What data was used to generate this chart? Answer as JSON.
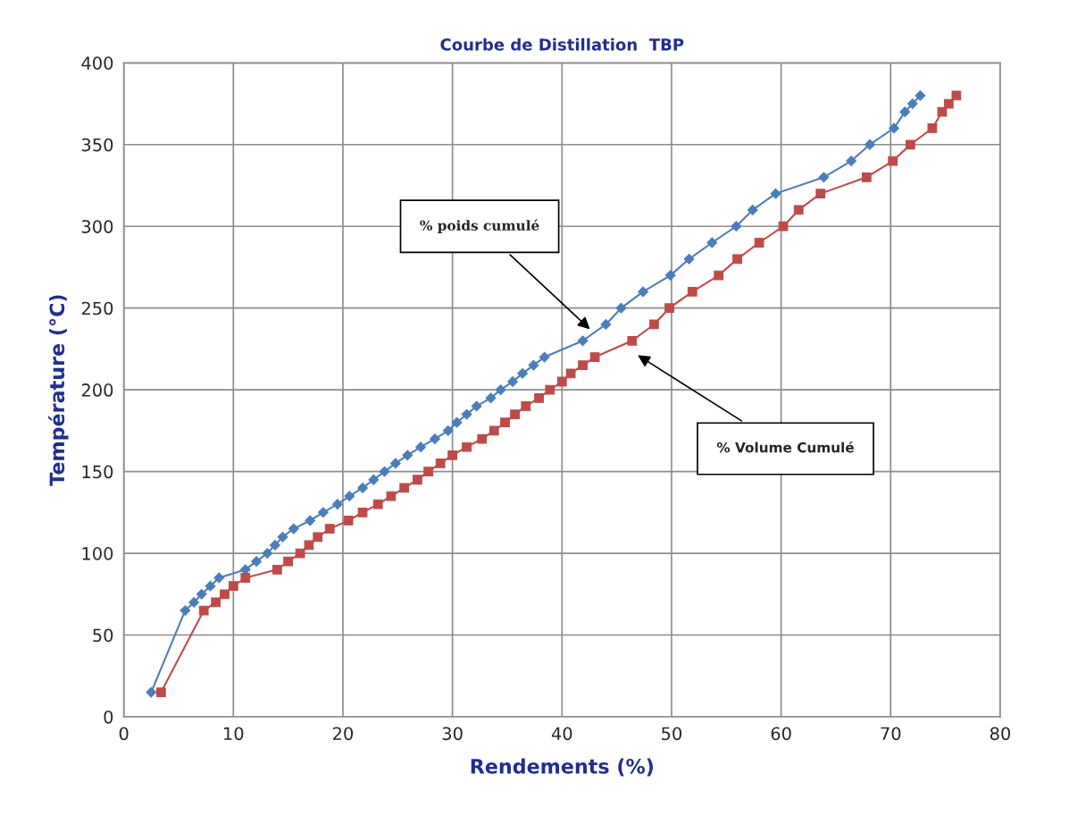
{
  "chart_data": {
    "type": "line",
    "title": "Courbe de Distillation  TBP",
    "xlabel": "Rendements (%)",
    "ylabel": "Température (°C)",
    "series": [
      {
        "color": "#4a7ebb",
        "marker": "diamond",
        "x": [
          2.5,
          5.6,
          6.4,
          7.1,
          7.9,
          8.7,
          11.1,
          12.1,
          13.1,
          13.8,
          14.5,
          15.5,
          17.0,
          18.2,
          19.5,
          20.6,
          21.8,
          22.8,
          23.8,
          24.8,
          25.9,
          27.1,
          28.4,
          29.6,
          30.4,
          31.3,
          32.2,
          33.5,
          34.4,
          35.5,
          36.4,
          37.4,
          38.4,
          41.9,
          44.0,
          45.4,
          47.4,
          49.9,
          51.6,
          53.7,
          55.9,
          57.4,
          59.5,
          63.9,
          66.4,
          68.1,
          70.3,
          71.3,
          72.0,
          72.7
        ],
        "values": [
          15,
          65,
          70,
          75,
          80,
          85,
          90,
          95,
          100,
          105,
          110,
          115,
          120,
          125,
          130,
          135,
          140,
          145,
          150,
          155,
          160,
          165,
          170,
          175,
          180,
          185,
          190,
          195,
          200,
          205,
          210,
          215,
          220,
          230,
          240,
          250,
          260,
          270,
          280,
          290,
          300,
          310,
          320,
          330,
          340,
          350,
          360,
          370,
          375,
          380
        ]
      },
      {
        "color": "#be4b48",
        "marker": "square",
        "x": [
          3.4,
          7.3,
          8.4,
          9.2,
          10.0,
          11.1,
          14.0,
          15.0,
          16.1,
          16.9,
          17.7,
          18.8,
          20.5,
          21.8,
          23.2,
          24.4,
          25.6,
          26.8,
          27.8,
          28.9,
          30.0,
          31.3,
          32.7,
          33.8,
          34.8,
          35.7,
          36.7,
          37.9,
          38.9,
          40.0,
          40.8,
          41.9,
          43.0,
          46.4,
          48.4,
          49.8,
          51.9,
          54.3,
          56.0,
          58.0,
          60.2,
          61.6,
          63.6,
          67.8,
          70.2,
          71.8,
          73.8,
          74.7,
          75.3,
          76.0
        ],
        "values": [
          15,
          65,
          70,
          75,
          80,
          85,
          90,
          95,
          100,
          105,
          110,
          115,
          120,
          125,
          130,
          135,
          140,
          145,
          150,
          155,
          160,
          165,
          170,
          175,
          180,
          185,
          190,
          195,
          200,
          205,
          210,
          215,
          220,
          230,
          240,
          250,
          260,
          270,
          280,
          290,
          300,
          310,
          320,
          330,
          340,
          350,
          360,
          370,
          375,
          380
        ]
      }
    ],
    "xlim": [
      0,
      80
    ],
    "xticks": [
      0,
      10,
      20,
      30,
      40,
      50,
      60,
      70,
      80
    ],
    "ylim": [
      0,
      400
    ],
    "yticks": [
      0,
      50,
      100,
      150,
      200,
      250,
      300,
      350,
      400
    ],
    "grid": true,
    "legend": false,
    "line_style": "solid",
    "annotations": [
      "% poids cumulé",
      "% Volume Cumulé"
    ]
  }
}
